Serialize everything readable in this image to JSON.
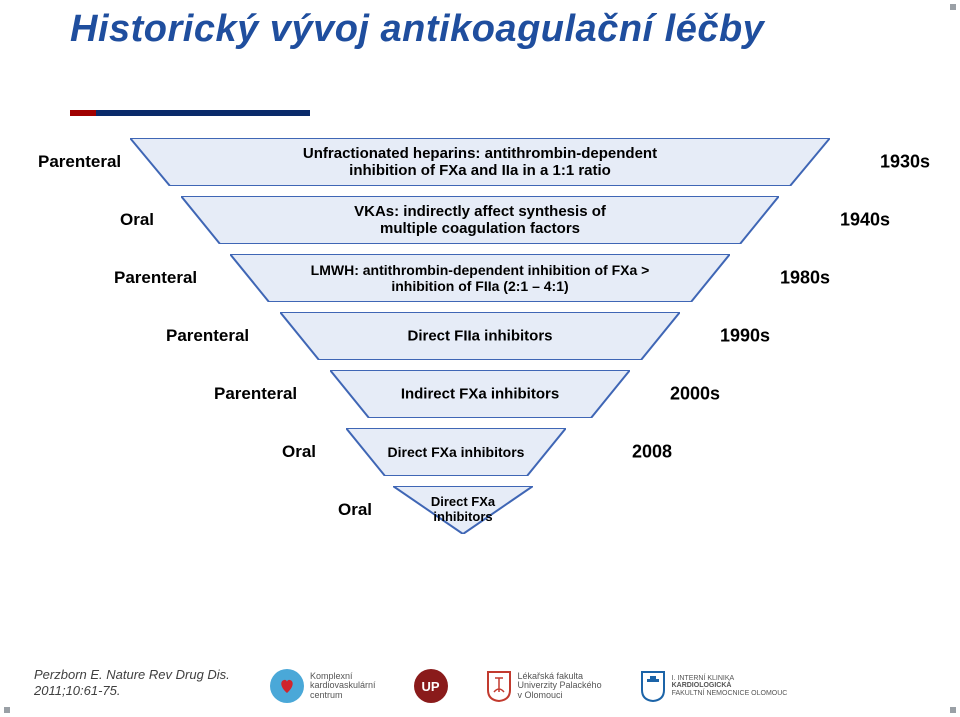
{
  "title_color": "#1f4e9e",
  "title": "Historický vývoj antikoagulační léčby",
  "rule": {
    "c1": "#a00000",
    "c2": "#0a2a6a"
  },
  "funnel": {
    "stroke": "#3f66b5",
    "fill": "#e6ecf7",
    "font_color": "#000000",
    "rows": [
      {
        "topW": 700,
        "botW": 620,
        "ctr": 480,
        "fs": 15,
        "text": "Unfractionated heparins: antithrombin-dependent\ninhibition of FXa and IIa in a 1:1 ratio",
        "route": "Parenteral",
        "routeX": 38,
        "dec": "1930s",
        "decX": 880
      },
      {
        "topW": 598,
        "botW": 520,
        "ctr": 480,
        "fs": 15,
        "text": "VKAs: indirectly affect synthesis of\nmultiple coagulation factors",
        "route": "Oral",
        "routeX": 120,
        "dec": "1940s",
        "decX": 840
      },
      {
        "topW": 500,
        "botW": 422,
        "ctr": 480,
        "fs": 14,
        "text": "LMWH: antithrombin-dependent inhibition of FXa >\ninhibition of FIIa (2:1 – 4:1)",
        "route": "Parenteral",
        "routeX": 114,
        "dec": "1980s",
        "decX": 780
      },
      {
        "topW": 400,
        "botW": 322,
        "ctr": 480,
        "fs": 15,
        "text": "Direct FIIa inhibitors",
        "route": "Parenteral",
        "routeX": 166,
        "dec": "1990s",
        "decX": 720
      },
      {
        "topW": 300,
        "botW": 222,
        "ctr": 480,
        "fs": 15,
        "text": "Indirect FXa inhibitors",
        "route": "Parenteral",
        "routeX": 214,
        "dec": "2000s",
        "decX": 670
      },
      {
        "topW": 220,
        "botW": 142,
        "ctr": 456,
        "fs": 14,
        "text": "Direct FXa inhibitors",
        "route": "Oral",
        "routeX": 282,
        "dec": "2008",
        "decX": 632
      },
      {
        "topW": 140,
        "botW": 0,
        "ctr": 463,
        "fs": 13,
        "text": "Direct FXa\ninhibitors",
        "route": "Oral",
        "routeX": 338,
        "dec": "",
        "decX": 0
      }
    ]
  },
  "footer_line1": "Perzborn E. Nature Rev Drug Dis.",
  "footer_line2": "2011;10:61-75.",
  "corner_sq": "#9aa0a6",
  "logos": {
    "l1": {
      "bg": "#4aa8d8",
      "inner": "#d1242b",
      "t1": "Komplexní",
      "t2": "kardiovaskulární",
      "t3": "centrum"
    },
    "l2": {
      "bg": "#8a1b1b",
      "txt": "UP"
    },
    "l3": {
      "c": "#c23a2e",
      "t1": "Lékařská fakulta",
      "t2": "Univerzity Palackého",
      "t3": "v Olomouci"
    },
    "l4": {
      "c": "#1c64a8",
      "t1": "I. INTERNÍ KLINIKA",
      "t2": "KARDIOLOGICKÁ",
      "t3": "FAKULTNÍ NEMOCNICE OLOMOUC"
    }
  }
}
